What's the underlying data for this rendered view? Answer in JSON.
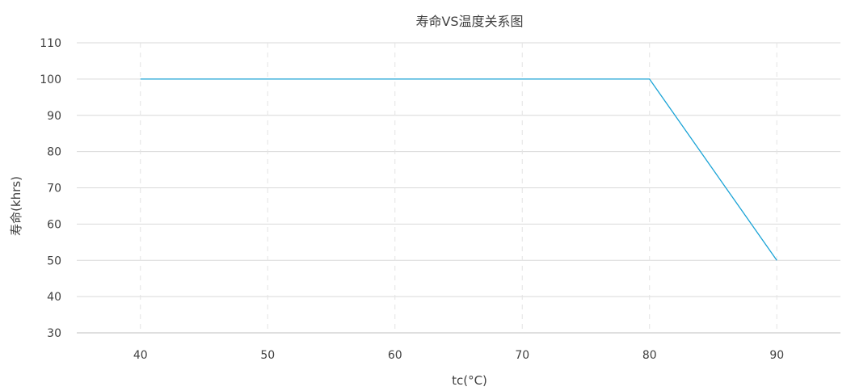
{
  "chart_data": {
    "type": "line",
    "title": "寿命VS温度关系图",
    "xlabel": "tc(°C)",
    "ylabel": "寿命(khrs)",
    "x": [
      40,
      80,
      90
    ],
    "series": [
      {
        "values": [
          100,
          100,
          50
        ],
        "color": "#1aa3d6"
      }
    ],
    "xlim": [
      35,
      95
    ],
    "ylim": [
      30,
      110
    ],
    "xticks": [
      "40",
      "50",
      "60",
      "70",
      "80",
      "90"
    ],
    "yticks": [
      "30",
      "40",
      "50",
      "60",
      "70",
      "80",
      "90",
      "100",
      "110"
    ],
    "grid": {
      "horizontal": "solid",
      "vertical": "dashed"
    },
    "legend": "none"
  }
}
